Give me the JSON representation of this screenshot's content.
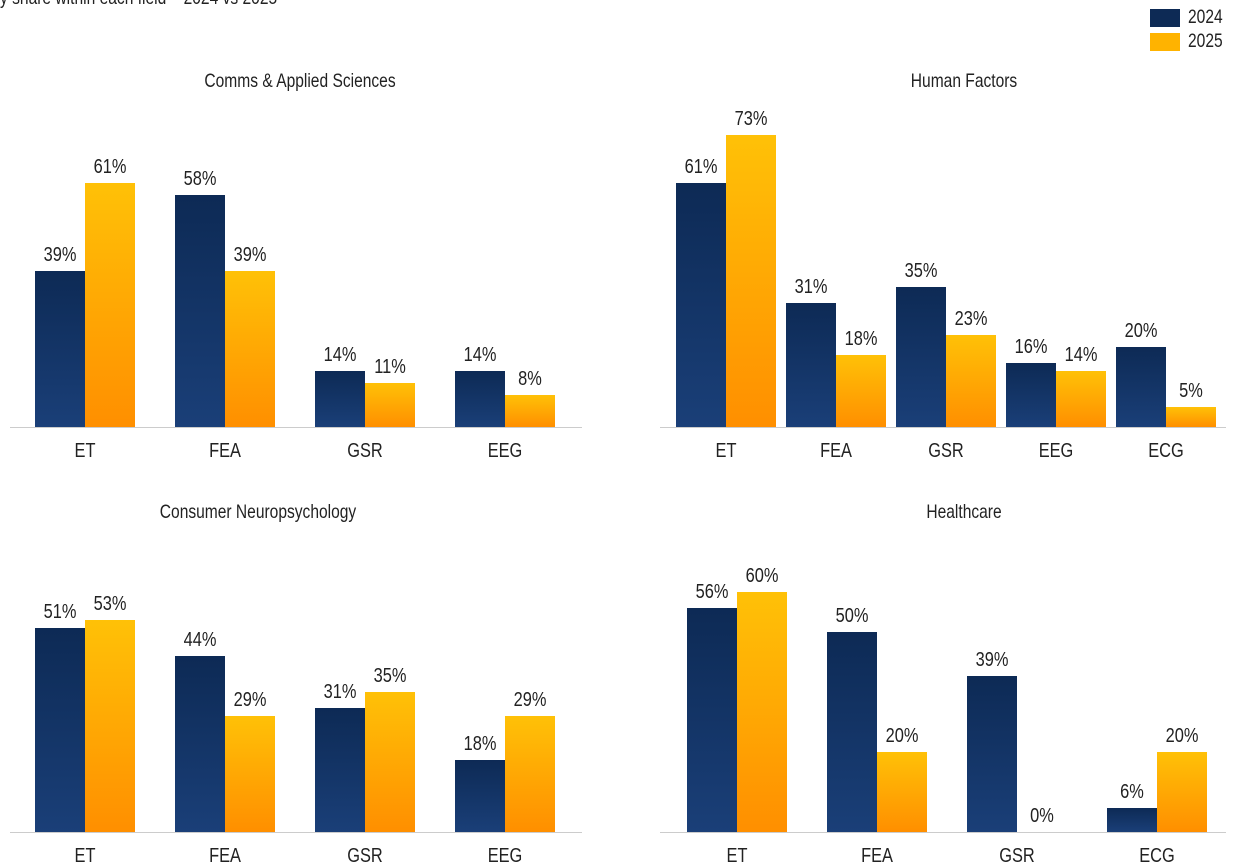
{
  "subtitle": "y share within each field    2024 vs 2025",
  "legend": [
    {
      "label": "2024",
      "color": "#0d2a55"
    },
    {
      "label": "2025",
      "color": "#ffb300"
    }
  ],
  "colors": {
    "series_2024_top": "#0d2a55",
    "series_2024_bottom": "#1a3f78",
    "series_2025_top": "#ffc107",
    "series_2025_bottom": "#ff8f00",
    "axis": "#cccccc"
  },
  "chart_data": [
    {
      "type": "bar",
      "title": "Comms & Applied Sciences",
      "categories": [
        "ET",
        "FEA",
        "GSR",
        "EEG"
      ],
      "series": [
        {
          "name": "2024",
          "values": [
            39,
            58,
            14,
            14
          ]
        },
        {
          "name": "2025",
          "values": [
            61,
            39,
            11,
            8
          ]
        }
      ],
      "ylim": [
        0,
        100
      ],
      "value_suffix": "%",
      "grid": false,
      "legend_position": "top-right"
    },
    {
      "type": "bar",
      "title": "Human Factors",
      "categories": [
        "ET",
        "FEA",
        "GSR",
        "EEG",
        "ECG"
      ],
      "series": [
        {
          "name": "2024",
          "values": [
            61,
            31,
            35,
            16,
            20
          ]
        },
        {
          "name": "2025",
          "values": [
            73,
            18,
            23,
            14,
            5
          ]
        }
      ],
      "ylim": [
        0,
        100
      ],
      "value_suffix": "%",
      "grid": false,
      "legend_position": "top-right"
    },
    {
      "type": "bar",
      "title": "Consumer Neuropsychology",
      "categories": [
        "ET",
        "FEA",
        "GSR",
        "EEG"
      ],
      "series": [
        {
          "name": "2024",
          "values": [
            51,
            44,
            31,
            18
          ]
        },
        {
          "name": "2025",
          "values": [
            53,
            29,
            35,
            29
          ]
        }
      ],
      "ylim": [
        0,
        100
      ],
      "value_suffix": "%",
      "grid": false,
      "legend_position": "top-right"
    },
    {
      "type": "bar",
      "title": "Healthcare",
      "categories": [
        "ET",
        "FEA",
        "GSR",
        "ECG"
      ],
      "series": [
        {
          "name": "2024",
          "values": [
            56,
            50,
            39,
            6
          ]
        },
        {
          "name": "2025",
          "values": [
            60,
            20,
            0,
            20
          ]
        }
      ],
      "ylim": [
        0,
        100
      ],
      "value_suffix": "%",
      "grid": false,
      "legend_position": "top-right"
    }
  ]
}
